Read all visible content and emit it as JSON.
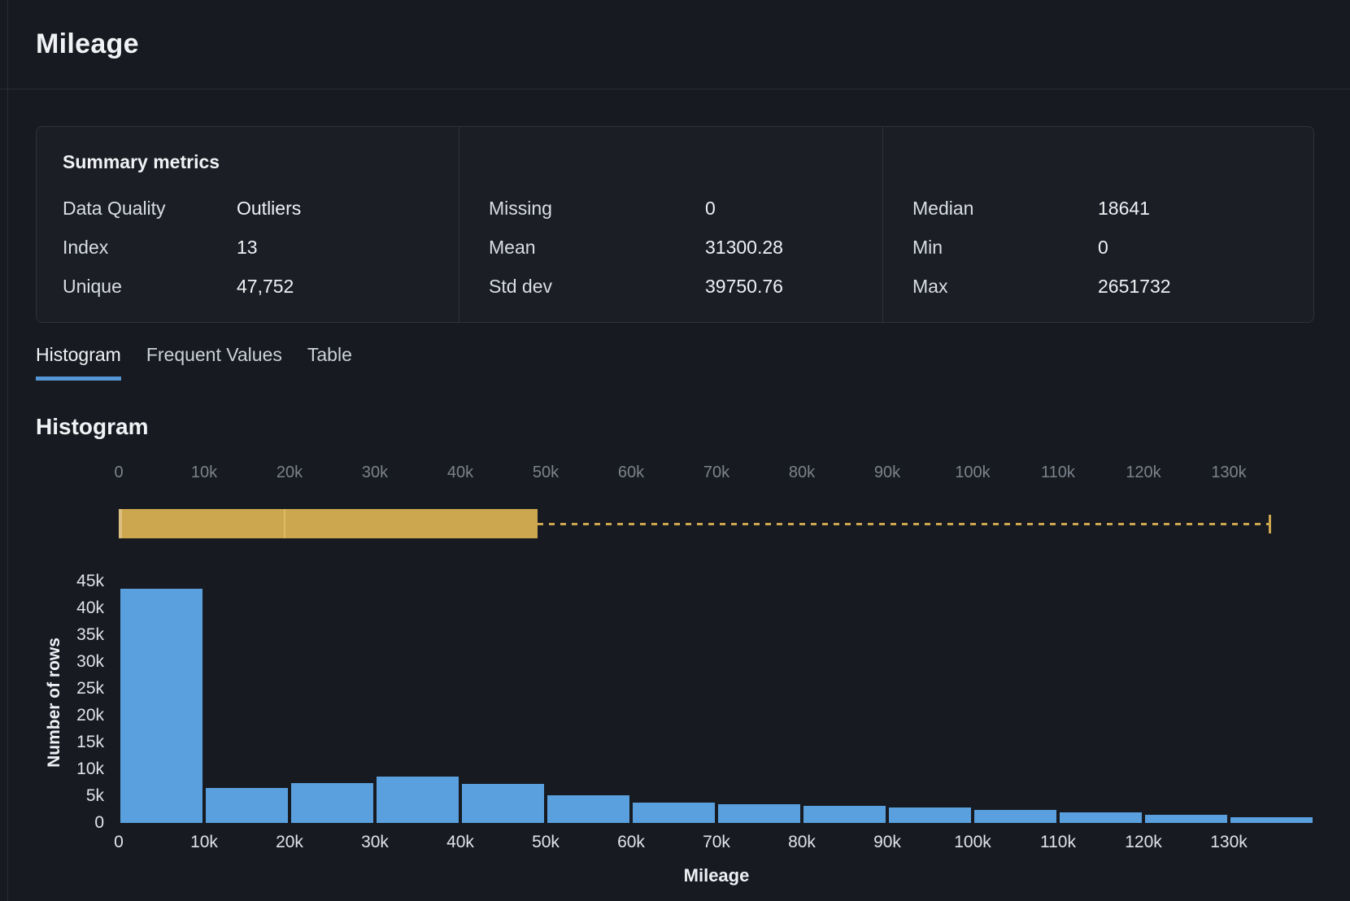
{
  "header": {
    "title": "Mileage"
  },
  "summary_card": {
    "heading": "Summary metrics",
    "columns": [
      {
        "rows": [
          {
            "label": "Data Quality",
            "value": "Outliers"
          },
          {
            "label": "Index",
            "value": "13"
          },
          {
            "label": "Unique",
            "value": "47,752"
          }
        ]
      },
      {
        "rows": [
          {
            "label": "Missing",
            "value": "0"
          },
          {
            "label": "Mean",
            "value": "31300.28"
          },
          {
            "label": "Std dev",
            "value": "39750.76"
          }
        ]
      },
      {
        "rows": [
          {
            "label": "Median",
            "value": "18641"
          },
          {
            "label": "Min",
            "value": "0"
          },
          {
            "label": "Max",
            "value": "2651732"
          }
        ]
      }
    ]
  },
  "tabs": [
    {
      "label": "Histogram",
      "active": true
    },
    {
      "label": "Frequent Values",
      "active": false
    },
    {
      "label": "Table",
      "active": false
    }
  ],
  "histogram_section": {
    "heading": "Histogram"
  },
  "colors": {
    "accent_blue": "#5596d5",
    "bar_blue": "#5aa0de",
    "selection_yellow": "#cda74f"
  },
  "range_slider": {
    "tick_labels": [
      "0",
      "10k",
      "20k",
      "30k",
      "40k",
      "50k",
      "60k",
      "70k",
      "80k",
      "90k",
      "100k",
      "110k",
      "120k",
      "130k"
    ],
    "axis_min": 0,
    "axis_max": 140000,
    "selection_start": 0,
    "selection_end": 49000,
    "selection_color": "#cda74f"
  },
  "chart_data": {
    "type": "bar",
    "title": "Histogram",
    "xlabel": "Mileage",
    "ylabel": "Number of rows",
    "bin_width": 10000,
    "bin_edges": [
      0,
      10000,
      20000,
      30000,
      40000,
      50000,
      60000,
      70000,
      80000,
      90000,
      100000,
      110000,
      120000,
      130000,
      140000
    ],
    "categories": [
      "0-10k",
      "10k-20k",
      "20k-30k",
      "30k-40k",
      "40k-50k",
      "50k-60k",
      "60k-70k",
      "70k-80k",
      "80k-90k",
      "90k-100k",
      "100k-110k",
      "110k-120k",
      "120k-130k",
      "130k+"
    ],
    "values": [
      43600,
      6500,
      7500,
      8700,
      7300,
      5100,
      3800,
      3500,
      3200,
      2900,
      2400,
      1900,
      1500,
      1000
    ],
    "x_tick_labels": [
      "0",
      "10k",
      "20k",
      "30k",
      "40k",
      "50k",
      "60k",
      "70k",
      "80k",
      "90k",
      "100k",
      "110k",
      "120k",
      "130k"
    ],
    "y_tick_labels": [
      "0",
      "5k",
      "10k",
      "15k",
      "20k",
      "25k",
      "30k",
      "35k",
      "40k",
      "45k"
    ],
    "ylim": [
      0,
      45000
    ],
    "bar_color": "#5aa0de",
    "grid": false,
    "legend": false
  }
}
